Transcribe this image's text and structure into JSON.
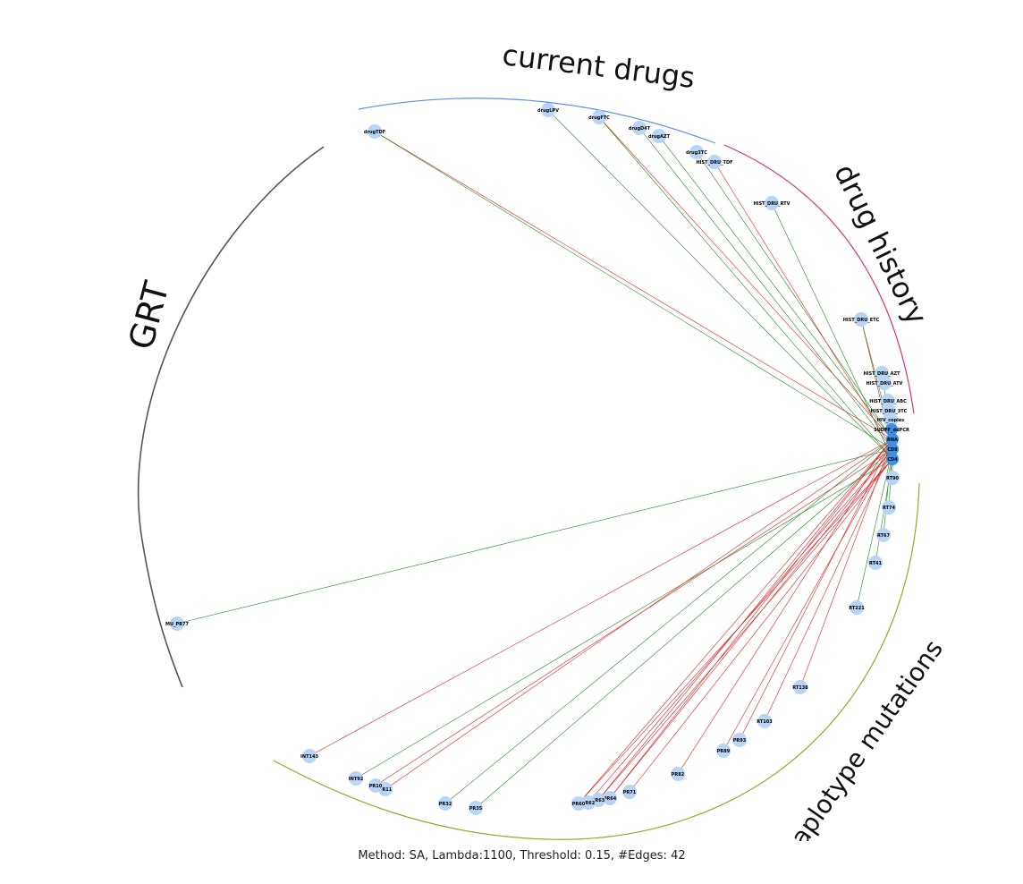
{
  "caption": "Method: SA, Lambda:1100, Threshold: 0.15, #Edges: 42",
  "colors": {
    "node": "#b8d4f6",
    "hub_node": "#3d8fe8",
    "edge_positive": "#1e8a1e",
    "edge_negative": "#e02020",
    "arc_current_drugs": "#5b8ff0",
    "arc_drug_history": "#e0307a",
    "arc_haplotype": "#8ab028",
    "arc_grt": "#555555"
  },
  "groups": [
    {
      "id": "current_drugs",
      "label": "current drugs"
    },
    {
      "id": "drug_history",
      "label": "drug history"
    },
    {
      "id": "haplotype",
      "label": "haplotype mutations"
    },
    {
      "id": "grt",
      "label": "GRT"
    }
  ],
  "hubs": [
    "SUDPF_ddPCR",
    "RNA",
    "CD8",
    "CD4"
  ],
  "nodes": [
    {
      "id": "drugTDF",
      "group": "current_drugs"
    },
    {
      "id": "drugLPV",
      "group": "current_drugs"
    },
    {
      "id": "drugFTC",
      "group": "current_drugs"
    },
    {
      "id": "drugD4T",
      "group": "current_drugs"
    },
    {
      "id": "drugAZT",
      "group": "current_drugs"
    },
    {
      "id": "drug3TC",
      "group": "current_drugs"
    },
    {
      "id": "HIST_DRU_TDF",
      "group": "drug_history"
    },
    {
      "id": "HIST_DRU_RTV",
      "group": "drug_history"
    },
    {
      "id": "HIST_DRU_ETC",
      "group": "drug_history"
    },
    {
      "id": "HIST_DRU_AZT",
      "group": "drug_history"
    },
    {
      "id": "HIST_DRU_ATV",
      "group": "drug_history"
    },
    {
      "id": "HIST_DRU_ABC",
      "group": "drug_history"
    },
    {
      "id": "HIST_DRU_3TC",
      "group": "drug_history"
    },
    {
      "id": "HIV_copies",
      "group": "drug_history"
    },
    {
      "id": "SUDPF_ddPCR",
      "group": "drug_history"
    },
    {
      "id": "RNA",
      "group": "hub"
    },
    {
      "id": "CD8",
      "group": "hub"
    },
    {
      "id": "CD4",
      "group": "hub"
    },
    {
      "id": "RT90",
      "group": "haplotype"
    },
    {
      "id": "RT74",
      "group": "haplotype"
    },
    {
      "id": "RT67",
      "group": "haplotype"
    },
    {
      "id": "RT41",
      "group": "haplotype"
    },
    {
      "id": "RT221",
      "group": "haplotype"
    },
    {
      "id": "RT138",
      "group": "haplotype"
    },
    {
      "id": "RT103",
      "group": "haplotype"
    },
    {
      "id": "PR93",
      "group": "haplotype"
    },
    {
      "id": "PR89",
      "group": "haplotype"
    },
    {
      "id": "PR82",
      "group": "haplotype"
    },
    {
      "id": "PR71",
      "group": "haplotype"
    },
    {
      "id": "PR64",
      "group": "haplotype"
    },
    {
      "id": "PR63",
      "group": "haplotype"
    },
    {
      "id": "PR62",
      "group": "haplotype"
    },
    {
      "id": "PR60",
      "group": "haplotype"
    },
    {
      "id": "PR35",
      "group": "haplotype"
    },
    {
      "id": "PR32",
      "group": "haplotype"
    },
    {
      "id": "PR11",
      "group": "haplotype"
    },
    {
      "id": "PR10",
      "group": "haplotype"
    },
    {
      "id": "INT92",
      "group": "haplotype"
    },
    {
      "id": "INT143",
      "group": "haplotype"
    },
    {
      "id": "MU_PR77",
      "group": "grt"
    }
  ],
  "edges": [
    {
      "from": "drugTDF",
      "to": "RNA",
      "sign": "negative"
    },
    {
      "from": "drugTDF",
      "to": "CD8",
      "sign": "positive"
    },
    {
      "from": "drugLPV",
      "to": "CD4",
      "sign": "positive"
    },
    {
      "from": "drugFTC",
      "to": "RNA",
      "sign": "negative"
    },
    {
      "from": "drugFTC",
      "to": "CD4",
      "sign": "positive"
    },
    {
      "from": "drugD4T",
      "to": "CD8",
      "sign": "positive"
    },
    {
      "from": "drugAZT",
      "to": "RNA",
      "sign": "positive"
    },
    {
      "from": "drug3TC",
      "to": "RNA",
      "sign": "positive"
    },
    {
      "from": "HIST_DRU_TDF",
      "to": "CD8",
      "sign": "negative"
    },
    {
      "from": "HIST_DRU_RTV",
      "to": "CD4",
      "sign": "positive"
    },
    {
      "from": "HIST_DRU_ETC",
      "to": "RNA",
      "sign": "negative"
    },
    {
      "from": "HIST_DRU_ETC",
      "to": "CD8",
      "sign": "positive"
    },
    {
      "from": "HIST_DRU_AZT",
      "to": "RNA",
      "sign": "positive"
    },
    {
      "from": "HIST_DRU_ABC",
      "to": "CD4",
      "sign": "negative"
    },
    {
      "from": "RT90",
      "to": "CD4",
      "sign": "positive"
    },
    {
      "from": "RT74",
      "to": "CD8",
      "sign": "positive"
    },
    {
      "from": "RT67",
      "to": "RNA",
      "sign": "positive"
    },
    {
      "from": "RT41",
      "to": "CD4",
      "sign": "positive"
    },
    {
      "from": "RT221",
      "to": "CD8",
      "sign": "positive"
    },
    {
      "from": "RT138",
      "to": "RNA",
      "sign": "negative"
    },
    {
      "from": "RT103",
      "to": "CD8",
      "sign": "negative"
    },
    {
      "from": "PR93",
      "to": "RNA",
      "sign": "negative"
    },
    {
      "from": "PR89",
      "to": "CD8",
      "sign": "negative"
    },
    {
      "from": "PR82",
      "to": "RNA",
      "sign": "negative"
    },
    {
      "from": "PR71",
      "to": "CD4",
      "sign": "negative"
    },
    {
      "from": "PR64",
      "to": "RNA",
      "sign": "negative"
    },
    {
      "from": "PR64",
      "to": "CD8",
      "sign": "negative"
    },
    {
      "from": "PR63",
      "to": "RNA",
      "sign": "negative"
    },
    {
      "from": "PR63",
      "to": "CD4",
      "sign": "negative"
    },
    {
      "from": "PR62",
      "to": "CD8",
      "sign": "negative"
    },
    {
      "from": "PR60",
      "to": "RNA",
      "sign": "negative"
    },
    {
      "from": "PR60",
      "to": "CD4",
      "sign": "negative"
    },
    {
      "from": "PR35",
      "to": "CD8",
      "sign": "positive"
    },
    {
      "from": "PR32",
      "to": "RNA",
      "sign": "positive"
    },
    {
      "from": "PR11",
      "to": "RNA",
      "sign": "negative"
    },
    {
      "from": "PR10",
      "to": "CD8",
      "sign": "negative"
    },
    {
      "from": "INT92",
      "to": "CD4",
      "sign": "positive"
    },
    {
      "from": "INT143",
      "to": "RNA",
      "sign": "negative"
    },
    {
      "from": "MU_PR77",
      "to": "CD8",
      "sign": "positive"
    },
    {
      "from": "SUDPF_ddPCR",
      "to": "HIV_copies",
      "sign": "positive"
    },
    {
      "from": "HIST_DRU_3TC",
      "to": "HIV_copies",
      "sign": "positive"
    },
    {
      "from": "HIST_DRU_ATV",
      "to": "HIST_DRU_AZT",
      "sign": "positive"
    }
  ]
}
